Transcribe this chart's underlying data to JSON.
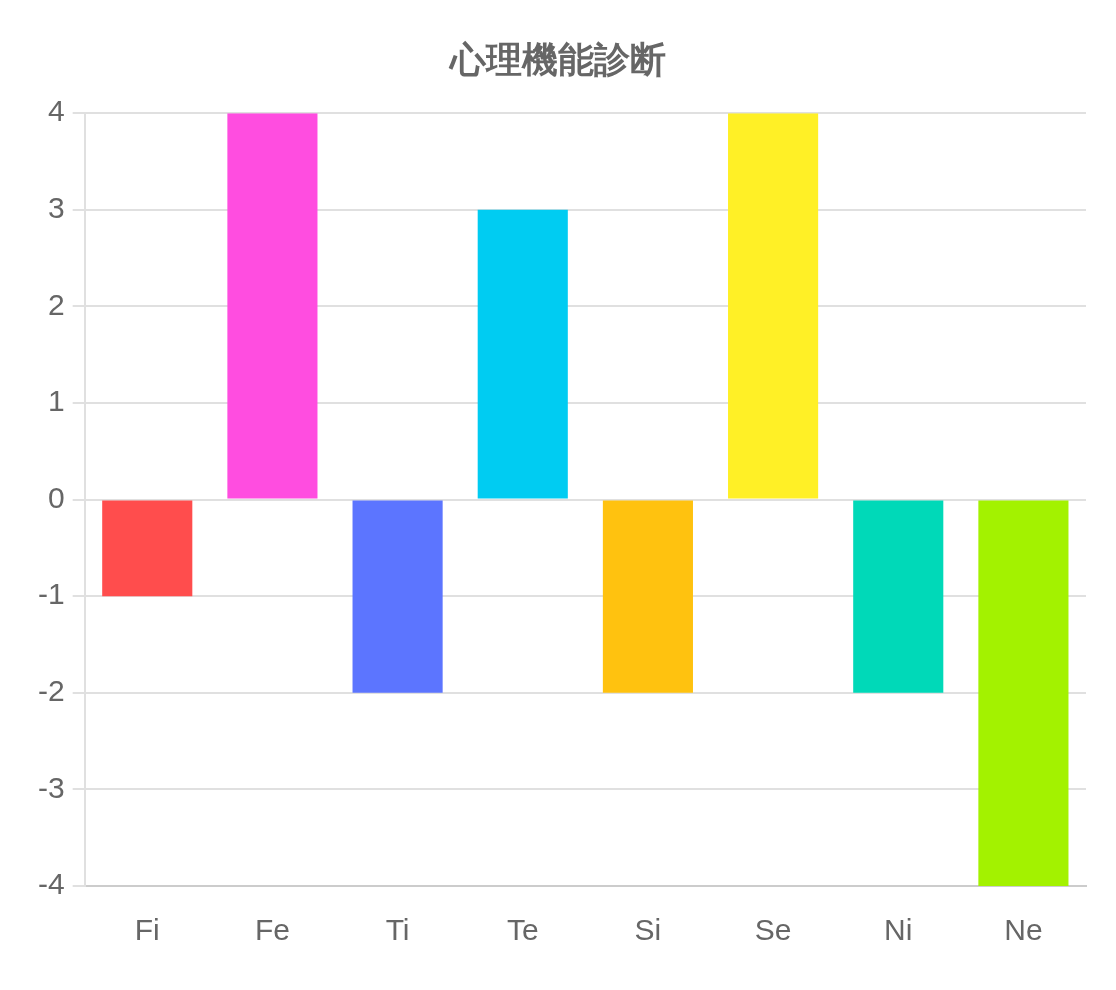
{
  "chart_data": {
    "type": "bar",
    "title": "心理機能診断",
    "categories": [
      "Fi",
      "Fe",
      "Ti",
      "Te",
      "Si",
      "Se",
      "Ni",
      "Ne"
    ],
    "values": [
      -1,
      4,
      -2,
      3,
      -2,
      4,
      -2,
      -4
    ],
    "colors": [
      "#ff4d4d",
      "#ff4de0",
      "#5c75ff",
      "#00ccf2",
      "#ffc20f",
      "#fff026",
      "#00d9b8",
      "#a3f200"
    ],
    "ylim": [
      -4,
      4
    ],
    "yticks": [
      -4,
      -3,
      -2,
      -1,
      0,
      1,
      2,
      3,
      4
    ],
    "grid": "y",
    "legend": false
  }
}
